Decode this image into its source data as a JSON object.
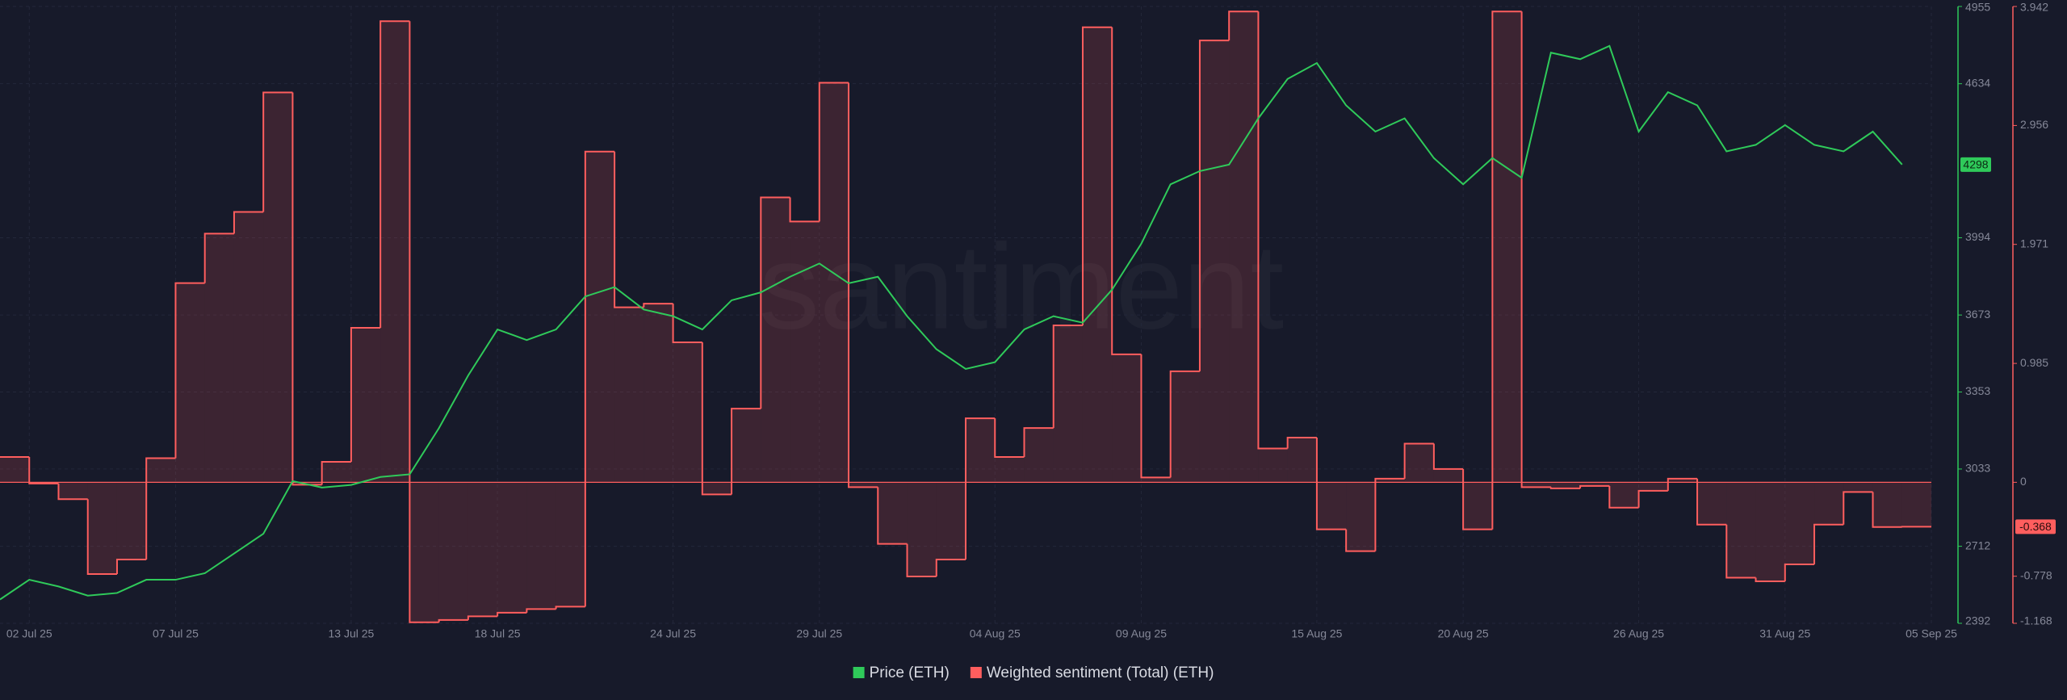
{
  "chart_data": {
    "type": "line",
    "watermark": "santiment",
    "x": [
      "2025-07-01",
      "2025-07-02",
      "2025-07-03",
      "2025-07-04",
      "2025-07-05",
      "2025-07-06",
      "2025-07-07",
      "2025-07-08",
      "2025-07-09",
      "2025-07-10",
      "2025-07-11",
      "2025-07-12",
      "2025-07-13",
      "2025-07-14",
      "2025-07-15",
      "2025-07-16",
      "2025-07-17",
      "2025-07-18",
      "2025-07-19",
      "2025-07-20",
      "2025-07-21",
      "2025-07-22",
      "2025-07-23",
      "2025-07-24",
      "2025-07-25",
      "2025-07-26",
      "2025-07-27",
      "2025-07-28",
      "2025-07-29",
      "2025-07-30",
      "2025-07-31",
      "2025-08-01",
      "2025-08-02",
      "2025-08-03",
      "2025-08-04",
      "2025-08-05",
      "2025-08-06",
      "2025-08-07",
      "2025-08-08",
      "2025-08-09",
      "2025-08-10",
      "2025-08-11",
      "2025-08-12",
      "2025-08-13",
      "2025-08-14",
      "2025-08-15",
      "2025-08-16",
      "2025-08-17",
      "2025-08-18",
      "2025-08-19",
      "2025-08-20",
      "2025-08-21",
      "2025-08-22",
      "2025-08-23",
      "2025-08-24",
      "2025-08-25",
      "2025-08-26",
      "2025-08-27",
      "2025-08-28",
      "2025-08-29",
      "2025-08-30",
      "2025-08-31",
      "2025-09-01",
      "2025-09-02",
      "2025-09-03",
      "2025-09-04"
    ],
    "xlim": [
      "2025-07-01",
      "2025-09-05"
    ],
    "xticks": [
      {
        "value": "2025-07-02",
        "label": "02 Jul 25"
      },
      {
        "value": "2025-07-07",
        "label": "07 Jul 25"
      },
      {
        "value": "2025-07-13",
        "label": "13 Jul 25"
      },
      {
        "value": "2025-07-18",
        "label": "18 Jul 25"
      },
      {
        "value": "2025-07-24",
        "label": "24 Jul 25"
      },
      {
        "value": "2025-07-29",
        "label": "29 Jul 25"
      },
      {
        "value": "2025-08-04",
        "label": "04 Aug 25"
      },
      {
        "value": "2025-08-09",
        "label": "09 Aug 25"
      },
      {
        "value": "2025-08-15",
        "label": "15 Aug 25"
      },
      {
        "value": "2025-08-20",
        "label": "20 Aug 25"
      },
      {
        "value": "2025-08-26",
        "label": "26 Aug 25"
      },
      {
        "value": "2025-08-31",
        "label": "31 Aug 25"
      },
      {
        "value": "2025-09-05",
        "label": "05 Sep 25"
      }
    ],
    "ylim": [
      2392,
      4955
    ],
    "yticks": [
      2392,
      2712,
      3033,
      3353,
      3673,
      3994,
      4634,
      4955
    ],
    "y2lim": [
      -1.168,
      3.942
    ],
    "y2ticks": [
      -1.168,
      -0.778,
      0,
      0.985,
      1.971,
      2.956,
      3.942
    ],
    "grid": true,
    "legend": "bottom",
    "series": [
      {
        "name": "Price (ETH)",
        "color": "#2fca5a",
        "values": [
          2491,
          2573,
          2545,
          2507,
          2518,
          2573,
          2573,
          2600,
          2682,
          2764,
          2983,
          2956,
          2967,
          3000,
          3011,
          3203,
          3422,
          3613,
          3569,
          3613,
          3750,
          3789,
          3696,
          3668,
          3613,
          3734,
          3767,
          3832,
          3887,
          3805,
          3832,
          3668,
          3531,
          3449,
          3477,
          3613,
          3668,
          3641,
          3778,
          3969,
          4216,
          4271,
          4298,
          4490,
          4654,
          4720,
          4544,
          4435,
          4490,
          4325,
          4216,
          4325,
          4243,
          4763,
          4736,
          4791,
          4435,
          4599,
          4544,
          4353,
          4380,
          4462,
          4380,
          4353,
          4435,
          4298
        ]
      },
      {
        "name": "Weighted sentiment (Total) (ETH)",
        "color": "#ff5e5e",
        "axis": "y2",
        "step": true,
        "values": [
          0.21,
          -0.01,
          -0.14,
          -0.76,
          -0.64,
          0.2,
          1.65,
          2.06,
          2.24,
          3.23,
          -0.02,
          0.17,
          1.28,
          3.82,
          -1.16,
          -1.14,
          -1.11,
          -1.08,
          -1.05,
          -1.03,
          2.74,
          1.45,
          1.48,
          1.16,
          -0.1,
          0.61,
          2.36,
          2.16,
          3.31,
          -0.04,
          -0.51,
          -0.78,
          -0.64,
          0.53,
          0.21,
          0.45,
          1.3,
          3.77,
          1.06,
          0.04,
          0.92,
          3.66,
          3.9,
          0.28,
          0.37,
          -0.39,
          -0.57,
          0.03,
          0.32,
          0.11,
          -0.39,
          3.9,
          -0.04,
          -0.05,
          -0.03,
          -0.21,
          -0.07,
          0.03,
          -0.35,
          -0.79,
          -0.82,
          -0.68,
          -0.35,
          -0.08,
          -0.37,
          -0.368
        ]
      }
    ]
  }
}
